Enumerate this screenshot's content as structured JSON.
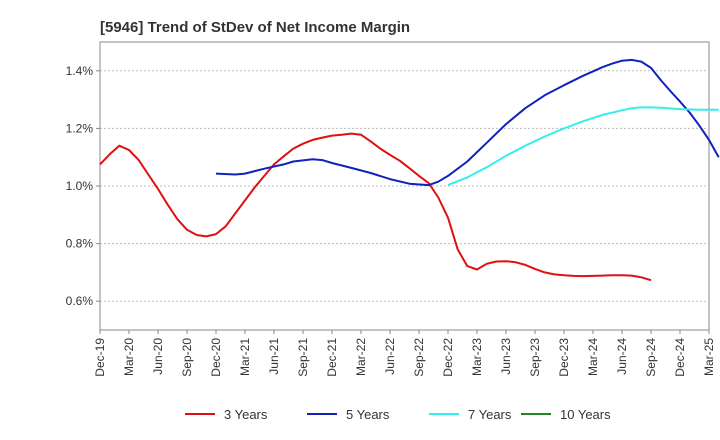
{
  "chart_data": {
    "type": "line",
    "title": "[5946]  Trend of StDev of Net Income Margin",
    "xlabel": "",
    "ylabel": "",
    "x_ticks": [
      "Dec-19",
      "Mar-20",
      "Jun-20",
      "Sep-20",
      "Dec-20",
      "Mar-21",
      "Jun-21",
      "Sep-21",
      "Dec-21",
      "Mar-22",
      "Jun-22",
      "Sep-22",
      "Dec-22",
      "Mar-23",
      "Jun-23",
      "Sep-23",
      "Dec-23",
      "Mar-24",
      "Jun-24",
      "Sep-24",
      "Dec-24",
      "Mar-25"
    ],
    "y_ticks": [
      "0.6%",
      "0.8%",
      "1.0%",
      "1.2%",
      "1.4%"
    ],
    "y_tick_values": [
      0.6,
      0.8,
      1.0,
      1.2,
      1.4
    ],
    "ylim": [
      0.5,
      1.5
    ],
    "grid": "horizontal dashed",
    "legend_position": "bottom",
    "series": [
      {
        "name": "3 Years",
        "color": "#dd1111",
        "points": [
          [
            0,
            1.075
          ],
          [
            1,
            1.11
          ],
          [
            2,
            1.14
          ],
          [
            3,
            1.125
          ],
          [
            4,
            1.09
          ],
          [
            5,
            1.04
          ],
          [
            6,
            0.99
          ],
          [
            7,
            0.935
          ],
          [
            8,
            0.885
          ],
          [
            9,
            0.848
          ],
          [
            10,
            0.83
          ],
          [
            11,
            0.825
          ],
          [
            12,
            0.833
          ],
          [
            13,
            0.86
          ],
          [
            14,
            0.905
          ],
          [
            15,
            0.95
          ],
          [
            16,
            0.995
          ],
          [
            17,
            1.035
          ],
          [
            18,
            1.075
          ],
          [
            19,
            1.103
          ],
          [
            20,
            1.13
          ],
          [
            21,
            1.147
          ],
          [
            22,
            1.16
          ],
          [
            23,
            1.168
          ],
          [
            24,
            1.175
          ],
          [
            25,
            1.178
          ],
          [
            26,
            1.182
          ],
          [
            27,
            1.178
          ],
          [
            28,
            1.155
          ],
          [
            29,
            1.13
          ],
          [
            30,
            1.108
          ],
          [
            31,
            1.088
          ],
          [
            32,
            1.062
          ],
          [
            33,
            1.035
          ],
          [
            34,
            1.01
          ],
          [
            35,
            0.96
          ],
          [
            36,
            0.89
          ],
          [
            37,
            0.78
          ],
          [
            38,
            0.722
          ],
          [
            39,
            0.71
          ],
          [
            40,
            0.73
          ],
          [
            41,
            0.738
          ],
          [
            42,
            0.739
          ],
          [
            43,
            0.735
          ],
          [
            44,
            0.726
          ],
          [
            45,
            0.712
          ],
          [
            46,
            0.7
          ],
          [
            47,
            0.693
          ],
          [
            48,
            0.69
          ],
          [
            49,
            0.688
          ],
          [
            50,
            0.687
          ],
          [
            51,
            0.688
          ],
          [
            52,
            0.689
          ],
          [
            53,
            0.69
          ],
          [
            54,
            0.69
          ],
          [
            55,
            0.689
          ],
          [
            56,
            0.683
          ],
          [
            57,
            0.673
          ]
        ]
      },
      {
        "name": "5 Years",
        "color": "#1122bb",
        "points": [
          [
            12,
            1.043
          ],
          [
            14,
            1.04
          ],
          [
            15,
            1.043
          ],
          [
            17,
            1.06
          ],
          [
            19,
            1.075
          ],
          [
            20,
            1.085
          ],
          [
            22,
            1.093
          ],
          [
            23,
            1.09
          ],
          [
            24,
            1.08
          ],
          [
            26,
            1.063
          ],
          [
            28,
            1.045
          ],
          [
            30,
            1.024
          ],
          [
            32,
            1.008
          ],
          [
            34,
            1.003
          ],
          [
            35,
            1.015
          ],
          [
            36,
            1.035
          ],
          [
            38,
            1.085
          ],
          [
            40,
            1.15
          ],
          [
            42,
            1.215
          ],
          [
            44,
            1.27
          ],
          [
            46,
            1.315
          ],
          [
            48,
            1.35
          ],
          [
            50,
            1.383
          ],
          [
            52,
            1.413
          ],
          [
            53,
            1.425
          ],
          [
            54,
            1.435
          ],
          [
            55,
            1.438
          ],
          [
            56,
            1.432
          ],
          [
            57,
            1.41
          ],
          [
            58,
            1.368
          ],
          [
            59,
            1.33
          ],
          [
            60,
            1.293
          ],
          [
            61,
            1.255
          ],
          [
            62,
            1.21
          ],
          [
            63,
            1.16
          ],
          [
            64,
            1.1
          ]
        ]
      },
      {
        "name": "7 Years",
        "color": "#33eeee",
        "points": [
          [
            36,
            1.003
          ],
          [
            38,
            1.03
          ],
          [
            40,
            1.065
          ],
          [
            42,
            1.105
          ],
          [
            44,
            1.14
          ],
          [
            46,
            1.172
          ],
          [
            48,
            1.2
          ],
          [
            50,
            1.225
          ],
          [
            52,
            1.247
          ],
          [
            54,
            1.263
          ],
          [
            55,
            1.27
          ],
          [
            56,
            1.273
          ],
          [
            57,
            1.273
          ],
          [
            58,
            1.272
          ],
          [
            60,
            1.267
          ],
          [
            62,
            1.265
          ],
          [
            64,
            1.265
          ]
        ]
      },
      {
        "name": "10 Years",
        "color": "#228822",
        "points": []
      }
    ]
  }
}
